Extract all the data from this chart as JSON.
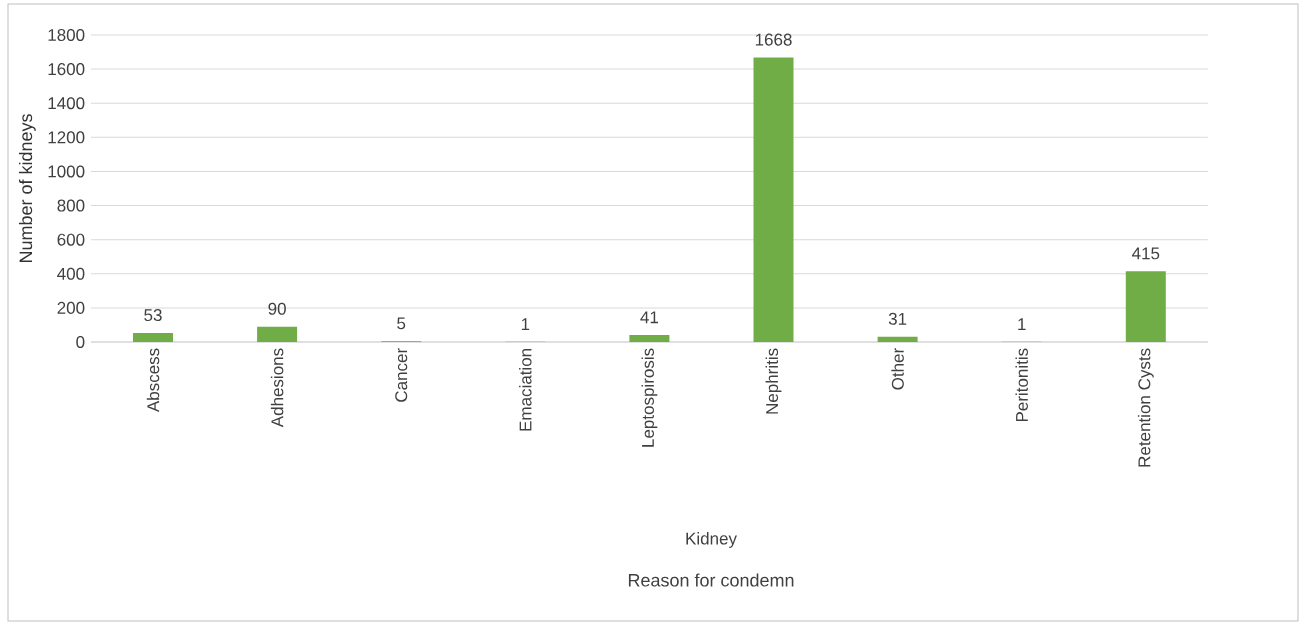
{
  "chart_data": {
    "type": "bar",
    "ylabel": "Number of kidneys",
    "categories": [
      "Abscess",
      "Adhesions",
      "Cancer",
      "Emaciation",
      "Leptospirosis",
      "Nephritis",
      "Other",
      "Peritonitis",
      "Retention Cysts"
    ],
    "values": [
      53,
      90,
      5,
      1,
      41,
      1668,
      31,
      1,
      415
    ],
    "color": "#70ad47",
    "ylim": [
      0,
      1800
    ],
    "yticks": [
      0,
      200,
      400,
      600,
      800,
      1000,
      1200,
      1400,
      1600,
      1800
    ],
    "grid": "y",
    "data_labels": true,
    "annotations": [
      "Kidney",
      "Reason for condemn"
    ]
  }
}
